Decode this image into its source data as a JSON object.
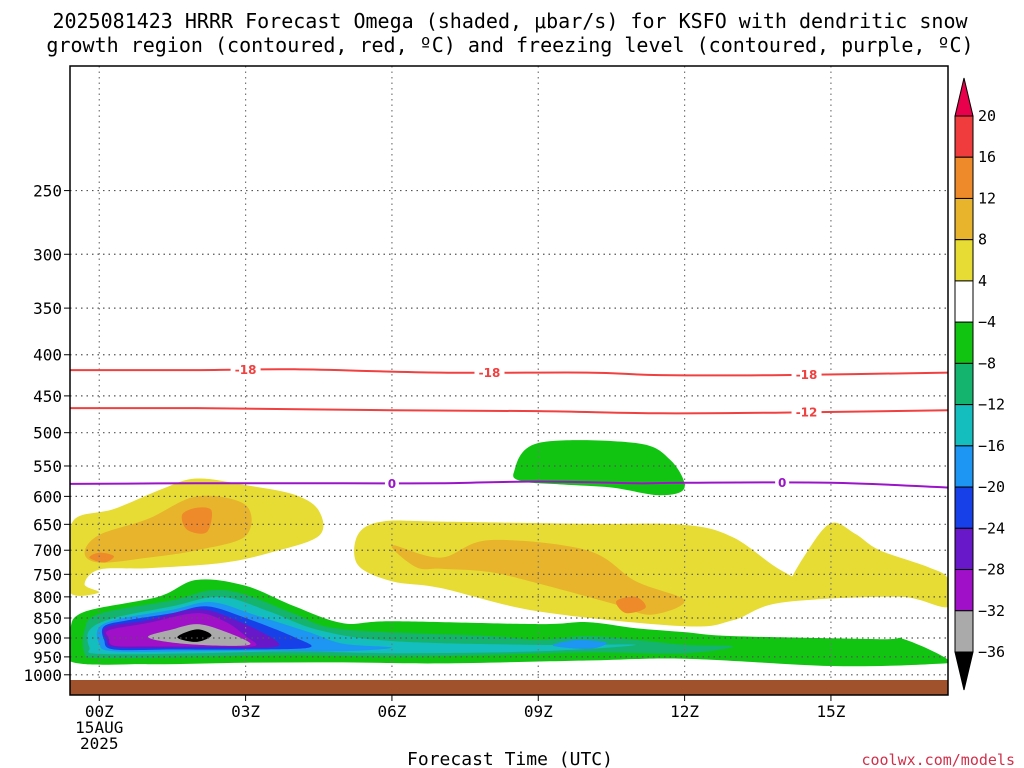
{
  "title": {
    "line1": "2025081423 HRRR Forecast Omega (shaded, μbar/s) for KSFO with dendritic snow",
    "line2": "growth region (contoured, red, ºC) and freezing level (contoured, purple, ºC)"
  },
  "credit": "coolwx.com/models",
  "chart_data": {
    "type": "heatmap",
    "xlabel": "Forecast Time (UTC)",
    "ylabel": "",
    "x_ticks": [
      "00Z",
      "03Z",
      "06Z",
      "09Z",
      "12Z",
      "15Z"
    ],
    "x_tick_hours": [
      0,
      3,
      6,
      9,
      12,
      15
    ],
    "x_date_label": [
      "15AUG",
      "2025"
    ],
    "xlim_hours": [
      -0.6,
      17.4
    ],
    "y_ticks": [
      250,
      300,
      350,
      400,
      450,
      500,
      550,
      600,
      650,
      700,
      750,
      800,
      850,
      900,
      950,
      1000
    ],
    "ylim_hPa": [
      175,
      1015
    ],
    "y_log_scale": true,
    "y_inverted": true,
    "grid": true,
    "ground_color": "#a0522d",
    "colorbar": {
      "labels": [
        "20",
        "16",
        "12",
        "8",
        "4",
        "−4",
        "−8",
        "−12",
        "−16",
        "−20",
        "−24",
        "−28",
        "−32",
        "−36"
      ],
      "colors": [
        "#e8004c",
        "#f03c3c",
        "#ee8a2a",
        "#e8b42c",
        "#e6dc34",
        "#ffffff",
        "#12c412",
        "#14b46e",
        "#14bebe",
        "#1c96f2",
        "#1840e8",
        "#6818c8",
        "#a010c8",
        "#aaaaaa",
        "#000000"
      ]
    },
    "contours": [
      {
        "name": "dgz-minus-18",
        "label": "-18",
        "color": "#f04040",
        "points": [
          [
            -0.6,
            418
          ],
          [
            2,
            418
          ],
          [
            4,
            417
          ],
          [
            7,
            421
          ],
          [
            10,
            421
          ],
          [
            11.5,
            424
          ],
          [
            14,
            424
          ],
          [
            17.4,
            421
          ]
        ],
        "label_hours": [
          3,
          8,
          14.5
        ]
      },
      {
        "name": "dgz-minus-12",
        "label": "-12",
        "color": "#f04040",
        "points": [
          [
            -0.6,
            466
          ],
          [
            2,
            466
          ],
          [
            6,
            469
          ],
          [
            9,
            470
          ],
          [
            11.5,
            473
          ],
          [
            14,
            472
          ],
          [
            17.4,
            469
          ]
        ],
        "label_hours": [
          14.5
        ]
      },
      {
        "name": "freezing-level-0",
        "label": "0",
        "color": "#9a14c8",
        "points": [
          [
            -0.6,
            579
          ],
          [
            2,
            578
          ],
          [
            5,
            578
          ],
          [
            7,
            578
          ],
          [
            9,
            575
          ],
          [
            11,
            578
          ],
          [
            12,
            577
          ],
          [
            15,
            577
          ],
          [
            17.4,
            585
          ]
        ],
        "label_hours": [
          6,
          14
        ]
      }
    ],
    "shaded_regions": [
      {
        "value": "4 to 8",
        "color": "#e6dc34",
        "points": [
          [
            -0.6,
            700
          ],
          [
            -0.5,
            640
          ],
          [
            0.3,
            622
          ],
          [
            1.3,
            587
          ],
          [
            2,
            570
          ],
          [
            3,
            581
          ],
          [
            4,
            597
          ],
          [
            4.5,
            625
          ],
          [
            4.5,
            672
          ],
          [
            3.5,
            705
          ],
          [
            2.5,
            726
          ],
          [
            1,
            737
          ],
          [
            0,
            740
          ],
          [
            -0.3,
            772
          ],
          [
            0,
            790
          ],
          [
            -0.6,
            790
          ]
        ]
      },
      {
        "value": "4 to 8",
        "color": "#e6dc34",
        "points": [
          [
            5.3,
            670
          ],
          [
            5.8,
            645
          ],
          [
            7,
            645
          ],
          [
            10,
            649
          ],
          [
            12,
            651
          ],
          [
            13,
            675
          ],
          [
            14,
            743
          ],
          [
            15,
            786
          ],
          [
            16,
            762
          ],
          [
            17.4,
            760
          ],
          [
            17.4,
            823
          ],
          [
            16.5,
            800
          ],
          [
            14,
            813
          ],
          [
            13,
            855
          ],
          [
            12,
            870
          ],
          [
            9,
            834
          ],
          [
            7,
            780
          ],
          [
            6,
            765
          ],
          [
            5.3,
            730
          ]
        ]
      },
      {
        "value": "4 to 8",
        "color": "#e6dc34",
        "points": [
          [
            14.1,
            782
          ],
          [
            14.5,
            705
          ],
          [
            15,
            648
          ],
          [
            15.5,
            668
          ],
          [
            16,
            700
          ],
          [
            17,
            735
          ],
          [
            17.4,
            760
          ],
          [
            17.4,
            823
          ],
          [
            16.5,
            800
          ],
          [
            15,
            800
          ],
          [
            14.3,
            803
          ]
        ]
      },
      {
        "value": "8 to 12",
        "color": "#e8b42c",
        "points": [
          [
            0,
            670
          ],
          [
            1,
            640
          ],
          [
            2,
            600
          ],
          [
            3,
            615
          ],
          [
            3,
            672
          ],
          [
            2,
            700
          ],
          [
            1,
            715
          ],
          [
            0,
            725
          ],
          [
            -0.3,
            705
          ]
        ]
      },
      {
        "value": "8 to 12",
        "color": "#e8b42c",
        "points": [
          [
            6,
            690
          ],
          [
            7,
            715
          ],
          [
            8,
            680
          ],
          [
            10,
            700
          ],
          [
            11,
            765
          ],
          [
            12,
            808
          ],
          [
            11.3,
            842
          ],
          [
            10.5,
            815
          ],
          [
            9,
            770
          ],
          [
            8,
            745
          ],
          [
            7,
            738
          ],
          [
            6.5,
            735
          ]
        ]
      },
      {
        "value": "12 to 16",
        "color": "#ee8a2a",
        "points": [
          [
            1.7,
            632
          ],
          [
            2,
            620
          ],
          [
            2.3,
            625
          ],
          [
            2.2,
            665
          ],
          [
            1.8,
            660
          ]
        ]
      },
      {
        "value": "12 to 16",
        "color": "#ee8a2a",
        "points": [
          [
            -0.2,
            715
          ],
          [
            0,
            705
          ],
          [
            0.3,
            712
          ],
          [
            0.1,
            725
          ]
        ]
      },
      {
        "value": "12 to 16",
        "color": "#ee8a2a",
        "points": [
          [
            10.6,
            810
          ],
          [
            11,
            800
          ],
          [
            11.2,
            825
          ],
          [
            10.8,
            838
          ]
        ]
      },
      {
        "value": "-4 to -8",
        "color": "#12c412",
        "points": [
          [
            -0.6,
            880
          ],
          [
            -0.3,
            835
          ],
          [
            1.2,
            800
          ],
          [
            2,
            762
          ],
          [
            3,
            775
          ],
          [
            4,
            822
          ],
          [
            5,
            863
          ],
          [
            6,
            858
          ],
          [
            9,
            865
          ],
          [
            10,
            860
          ],
          [
            11,
            875
          ],
          [
            12,
            885
          ],
          [
            13,
            895
          ],
          [
            16,
            903
          ],
          [
            16.5,
            903
          ],
          [
            17.4,
            958
          ],
          [
            17,
            970
          ],
          [
            15,
            975
          ],
          [
            12,
            955
          ],
          [
            10,
            960
          ],
          [
            7,
            968
          ],
          [
            5,
            965
          ],
          [
            3,
            966
          ],
          [
            1,
            970
          ],
          [
            -0.6,
            962
          ]
        ]
      },
      {
        "value": "-8 to -12",
        "color": "#14b46e",
        "points": [
          [
            -0.3,
            880
          ],
          [
            0,
            840
          ],
          [
            1.5,
            808
          ],
          [
            2.3,
            785
          ],
          [
            3,
            795
          ],
          [
            4,
            840
          ],
          [
            5,
            878
          ],
          [
            8,
            895
          ],
          [
            9,
            905
          ],
          [
            10,
            895
          ],
          [
            11,
            905
          ],
          [
            12,
            918
          ],
          [
            13,
            922
          ],
          [
            12,
            940
          ],
          [
            10,
            938
          ],
          [
            8,
            945
          ],
          [
            6,
            950
          ],
          [
            4,
            945
          ],
          [
            2,
            950
          ],
          [
            0,
            953
          ],
          [
            -0.3,
            940
          ]
        ]
      },
      {
        "value": "-12 to -16",
        "color": "#14bebe",
        "points": [
          [
            -0.2,
            880
          ],
          [
            0.3,
            850
          ],
          [
            1.5,
            822
          ],
          [
            2.5,
            800
          ],
          [
            3.5,
            835
          ],
          [
            4.5,
            880
          ],
          [
            6,
            908
          ],
          [
            9,
            918
          ],
          [
            11,
            918
          ],
          [
            9,
            935
          ],
          [
            6,
            940
          ],
          [
            4,
            935
          ],
          [
            2,
            940
          ],
          [
            0,
            942
          ],
          [
            -0.2,
            925
          ]
        ]
      },
      {
        "value": "-16 to -20",
        "color": "#1c96f2",
        "points": [
          [
            0,
            872
          ],
          [
            0.5,
            850
          ],
          [
            1.5,
            830
          ],
          [
            2.3,
            812
          ],
          [
            3.2,
            843
          ],
          [
            4.3,
            885
          ],
          [
            5,
            915
          ],
          [
            6,
            925
          ],
          [
            5,
            935
          ],
          [
            3.5,
            933
          ],
          [
            2,
            935
          ],
          [
            0.3,
            935
          ],
          [
            0,
            915
          ]
        ]
      },
      {
        "value": "-16 to -20",
        "color": "#1c96f2",
        "points": [
          [
            9.3,
            918
          ],
          [
            9.8,
            905
          ],
          [
            10.4,
            912
          ],
          [
            10.1,
            928
          ],
          [
            9.6,
            926
          ]
        ]
      },
      {
        "value": "-20 to -24",
        "color": "#1840e8",
        "points": [
          [
            0.1,
            870
          ],
          [
            0.6,
            855
          ],
          [
            1.5,
            838
          ],
          [
            2.2,
            822
          ],
          [
            3,
            850
          ],
          [
            4,
            898
          ],
          [
            4.3,
            925
          ],
          [
            3,
            930
          ],
          [
            1.5,
            930
          ],
          [
            0.3,
            930
          ],
          [
            0.1,
            905
          ]
        ]
      },
      {
        "value": "-24 to -28",
        "color": "#6818c8",
        "points": [
          [
            0.15,
            872
          ],
          [
            1,
            855
          ],
          [
            2,
            828
          ],
          [
            2.8,
            855
          ],
          [
            3.6,
            905
          ],
          [
            3.5,
            925
          ],
          [
            2,
            925
          ],
          [
            0.4,
            925
          ],
          [
            0.15,
            905
          ]
        ]
      },
      {
        "value": "-28 to -32",
        "color": "#a010c8",
        "points": [
          [
            0.2,
            880
          ],
          [
            1,
            862
          ],
          [
            2,
            838
          ],
          [
            2.6,
            860
          ],
          [
            3,
            895
          ],
          [
            3.2,
            920
          ],
          [
            2.5,
            922
          ],
          [
            1,
            922
          ],
          [
            0.3,
            920
          ],
          [
            0.2,
            900
          ]
        ]
      },
      {
        "value": "-32 to -36",
        "color": "#aaaaaa",
        "points": [
          [
            1,
            897
          ],
          [
            1.5,
            878
          ],
          [
            2,
            865
          ],
          [
            2.5,
            880
          ],
          [
            3.1,
            915
          ],
          [
            2.5,
            920
          ],
          [
            1.5,
            912
          ]
        ]
      },
      {
        "value": "< -36",
        "color": "#000000",
        "points": [
          [
            1.6,
            898
          ],
          [
            2,
            878
          ],
          [
            2.3,
            893
          ],
          [
            2,
            910
          ]
        ]
      },
      {
        "value": "-4 to -8",
        "color": "#12c412",
        "points": [
          [
            8.5,
            560
          ],
          [
            9,
            515
          ],
          [
            11,
            515
          ],
          [
            11.7,
            540
          ],
          [
            12,
            585
          ],
          [
            11.5,
            598
          ],
          [
            10.5,
            585
          ],
          [
            9.5,
            580
          ],
          [
            8.7,
            575
          ]
        ]
      }
    ]
  }
}
